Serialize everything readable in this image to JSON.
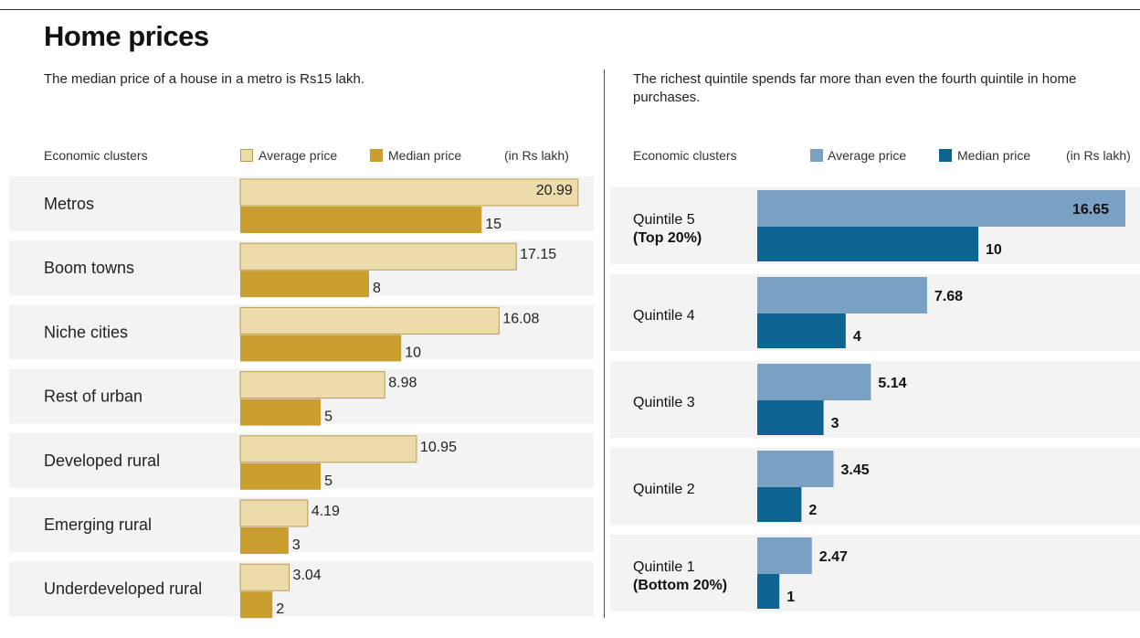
{
  "page": {
    "title": "Home prices"
  },
  "chart_data": [
    {
      "type": "bar",
      "subtitle": "The median price of a house in a metro is Rs15 lakh.",
      "category_header": "Economic clusters",
      "unit": "(in Rs lakh)",
      "categories": [
        "Metros",
        "Boom towns",
        "Niche cities",
        "Rest of urban",
        "Developed rural",
        "Emerging rural",
        "Underdeveloped rural"
      ],
      "series": [
        {
          "name": "Average price",
          "values": [
            20.99,
            17.15,
            16.08,
            8.98,
            10.95,
            4.19,
            3.04
          ],
          "labels": [
            "20.99",
            "17.15",
            "16.08",
            "8.98",
            "10.95",
            "4.19",
            "3.04"
          ],
          "color": "#ecdcab"
        },
        {
          "name": "Median price",
          "values": [
            15,
            8,
            10,
            5,
            5,
            3,
            2
          ],
          "labels": [
            "15",
            "8",
            "10",
            "5",
            "5",
            "3",
            "2"
          ],
          "color": "#c99e2e"
        }
      ],
      "xlim": [
        0,
        21
      ]
    },
    {
      "type": "bar",
      "subtitle": "The richest quintile spends far more than even the fourth quintile in home purchases.",
      "category_header": "Economic clusters",
      "unit": "(in Rs lakh)",
      "categories": [
        [
          "Quintile 5",
          "(Top 20%)"
        ],
        [
          "Quintile 4"
        ],
        [
          "Quintile 3"
        ],
        [
          "Quintile 2"
        ],
        [
          "Quintile 1",
          "(Bottom 20%)"
        ]
      ],
      "series": [
        {
          "name": "Average price",
          "values": [
            16.65,
            7.68,
            5.14,
            3.45,
            2.47
          ],
          "labels": [
            "16.65",
            "7.68",
            "5.14",
            "3.45",
            "2.47"
          ],
          "color": "#7aa0c4"
        },
        {
          "name": "Median price",
          "values": [
            10,
            4,
            3,
            2,
            1
          ],
          "labels": [
            "10",
            "4",
            "3",
            "2",
            "1"
          ],
          "color": "#0e6491"
        }
      ],
      "xlim": [
        0,
        16.65
      ]
    }
  ]
}
